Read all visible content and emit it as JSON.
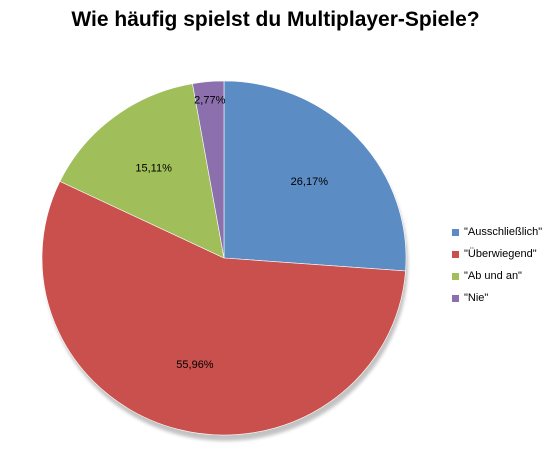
{
  "chart_data": {
    "type": "pie",
    "title": "Wie häufig spielst du Multiplayer-Spiele?",
    "slices": [
      {
        "name": "\"Ausschließlich\"",
        "value": 26.17,
        "label": "26,17%",
        "color": "#5B8CC4"
      },
      {
        "name": "\"Überwiegend\"",
        "value": 55.96,
        "label": "55,96%",
        "color": "#C9504D"
      },
      {
        "name": "\"Ab und an\"",
        "value": 15.11,
        "label": "15,11%",
        "color": "#A0BE5A"
      },
      {
        "name": "\"Nie\"",
        "value": 2.77,
        "label": "2,77%",
        "color": "#8C70AE"
      }
    ],
    "legend_position": "right"
  }
}
